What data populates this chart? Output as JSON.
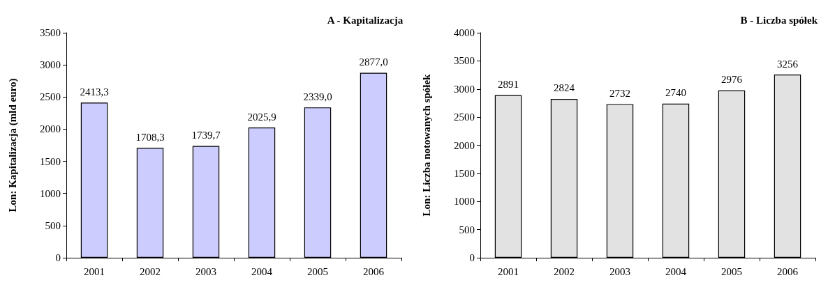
{
  "chart_data": [
    {
      "type": "bar",
      "title": "A - Kapitalizacja",
      "ylabel": "Lon: Kapitalizacja (mld euro)",
      "categories": [
        "2001",
        "2002",
        "2003",
        "2004",
        "2005",
        "2006"
      ],
      "values": [
        2413.3,
        1708.3,
        1739.7,
        2025.9,
        2339.0,
        2877.0
      ],
      "value_labels": [
        "2413,3",
        "1708,3",
        "1739,7",
        "2025,9",
        "2339,0",
        "2877,0"
      ],
      "color": "#ccccff",
      "ylim": [
        0,
        3500
      ],
      "yticks": [
        0,
        500,
        1000,
        1500,
        2000,
        2500,
        3000,
        3500
      ],
      "grid": false
    },
    {
      "type": "bar",
      "title": "B - Liczba spółek",
      "ylabel": "Lon: Liczba notowanych spółek",
      "categories": [
        "2001",
        "2002",
        "2003",
        "2004",
        "2005",
        "2006"
      ],
      "values": [
        2891,
        2824,
        2732,
        2740,
        2976,
        3256
      ],
      "data_labels": true,
      "color": "#e2e2e2",
      "ylim": [
        0,
        4000
      ],
      "yticks": [
        0,
        500,
        1000,
        1500,
        2000,
        2500,
        3000,
        3500,
        4000
      ],
      "grid": false
    }
  ]
}
